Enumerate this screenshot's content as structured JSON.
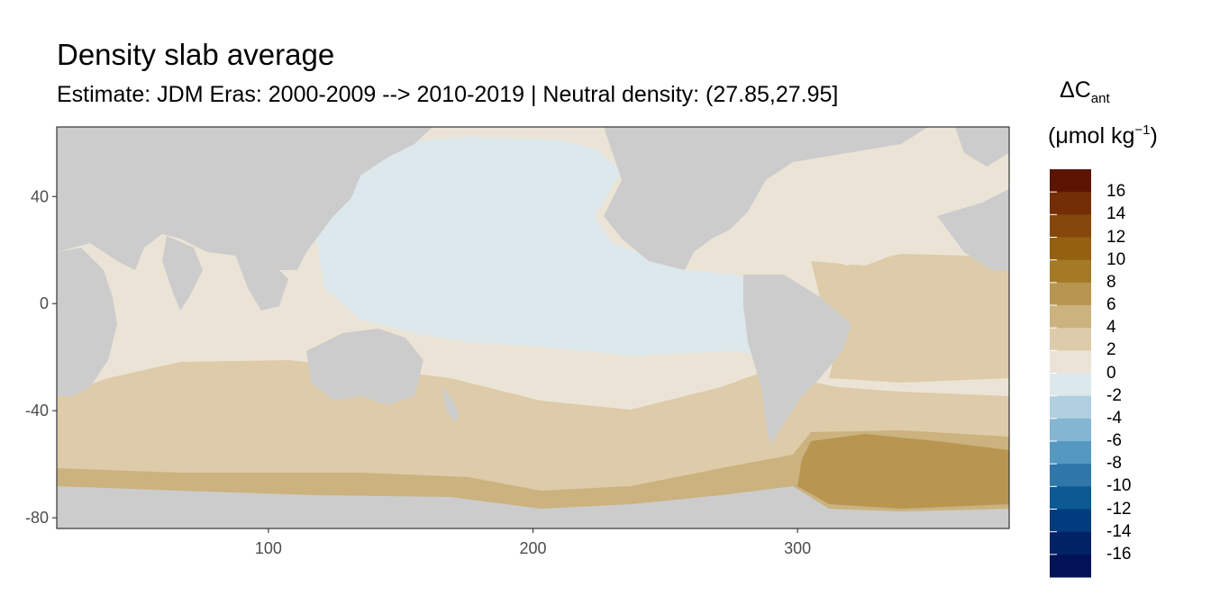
{
  "title": "Density slab average",
  "subtitle": "Estimate: JDM Eras: 2000-2009 --> 2010-2019 | Neutral density: (27.85,27.95]",
  "legend": {
    "title_symbol": "ΔC",
    "title_subscript": "ant",
    "unit_prefix": "(μmol kg",
    "unit_superscript": "−1",
    "unit_suffix": ")",
    "labels": [
      "16",
      "14",
      "12",
      "10",
      "8",
      "6",
      "4",
      "2",
      "0",
      "-2",
      "-4",
      "-6",
      "-8",
      "-10",
      "-12",
      "-14",
      "-16"
    ],
    "colors": [
      "#5c1402",
      "#732e06",
      "#85480a",
      "#955f10",
      "#a57a25",
      "#b89651",
      "#cbb27e",
      "#ddcba9",
      "#ebe4d6",
      "#dde8ed",
      "#b0cfe0",
      "#84b5d2",
      "#5599c0",
      "#2e77a8",
      "#0b5a94",
      "#023c7e",
      "#022266",
      "#011356"
    ]
  },
  "map": {
    "land_color": "#cccccc",
    "nodata_color": "#ffffff",
    "x_ticks": [
      "100",
      "200",
      "300"
    ],
    "y_ticks": [
      "40",
      "0",
      "-40",
      "-80"
    ],
    "x_tick_values": [
      100,
      200,
      300
    ],
    "y_tick_values": [
      40,
      0,
      -40,
      -80
    ],
    "xlim": [
      20,
      380
    ],
    "ylim": [
      -84,
      66
    ]
  }
}
